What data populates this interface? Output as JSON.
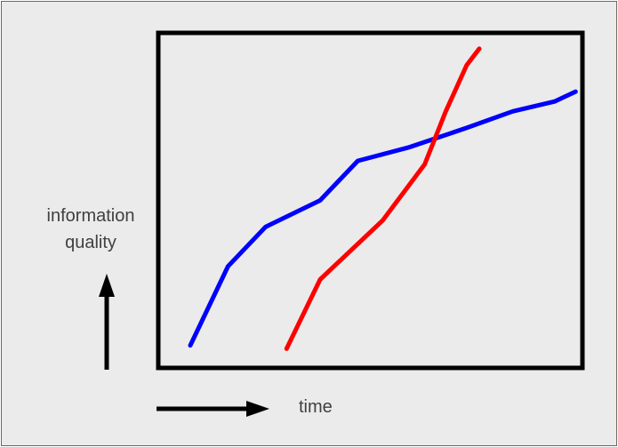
{
  "chart_data": {
    "type": "line",
    "title": "",
    "xlabel": "time",
    "ylabel_lines": [
      "information",
      "quality"
    ],
    "grid": false,
    "legend": "none",
    "series": [
      {
        "color": "#0000ff",
        "x": [
          0.07,
          0.16,
          0.25,
          0.38,
          0.47,
          0.59,
          0.73,
          0.84,
          0.94,
          0.99
        ],
        "y": [
          0.06,
          0.3,
          0.42,
          0.5,
          0.62,
          0.66,
          0.72,
          0.77,
          0.8,
          0.83
        ]
      },
      {
        "color": "#ff0000",
        "x": [
          0.3,
          0.38,
          0.53,
          0.63,
          0.68,
          0.73,
          0.76
        ],
        "y": [
          0.05,
          0.26,
          0.44,
          0.61,
          0.77,
          0.91,
          0.96
        ]
      }
    ],
    "xlim": [
      0,
      1
    ],
    "ylim": [
      0,
      1
    ]
  }
}
